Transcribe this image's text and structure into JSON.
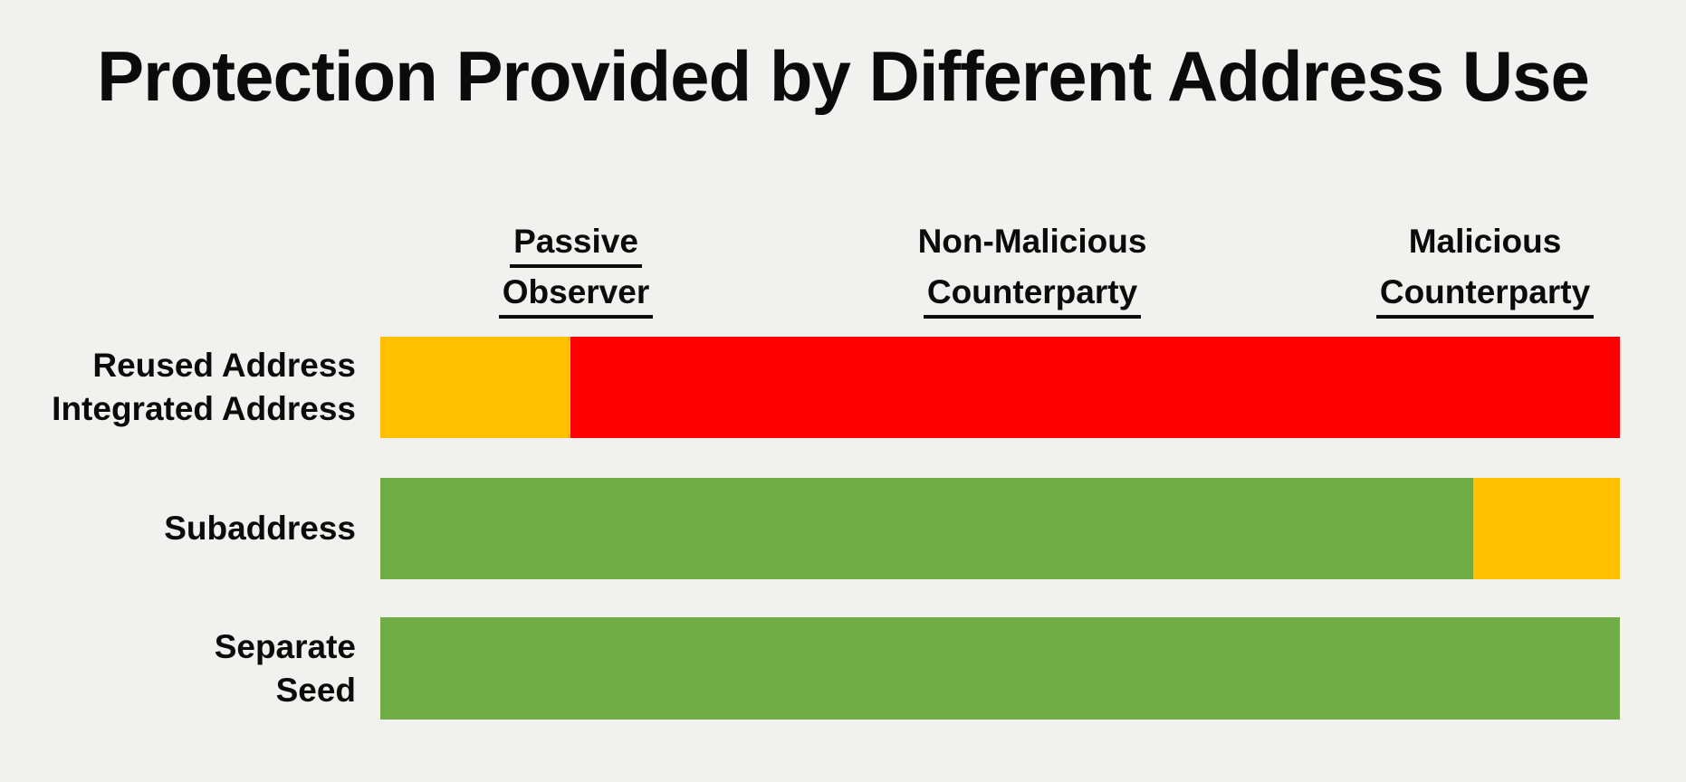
{
  "background_color": "#F1F1F0",
  "text_color": "#0b0b0b",
  "chart_data": {
    "type": "bar",
    "subtype": "horizontal-stacked-qualitative",
    "title": "Protection Provided by Different Address Use",
    "xlabel": "",
    "ylabel": "",
    "legend": "none",
    "grid": "off",
    "columns": [
      {
        "label_lines": [
          "Passive",
          "Observer"
        ],
        "underlined_lines": [
          0,
          1
        ]
      },
      {
        "label_lines": [
          "Non-Malicious",
          "Counterparty"
        ],
        "underlined_lines": [
          1
        ]
      },
      {
        "label_lines": [
          "Malicious",
          "Counterparty"
        ],
        "underlined_lines": [
          1
        ]
      }
    ],
    "column_centers_frac_of_bar": [
      0.158,
      0.526,
      0.891
    ],
    "status_colors": {
      "good": "#70AD47",
      "partial": "#FFC000",
      "bad": "#FF0000"
    },
    "rows": [
      {
        "label_lines": [
          "Reused Address",
          "Integrated Address"
        ],
        "segments": [
          {
            "level": "partial",
            "color": "#FFC000",
            "width_frac": 0.153,
            "width_pct": "15.34%"
          },
          {
            "level": "bad",
            "color": "#FF0000",
            "width_frac": 0.847,
            "width_pct": "84.66%"
          }
        ]
      },
      {
        "label_lines": [
          "Subaddress"
        ],
        "segments": [
          {
            "level": "good",
            "color": "#70AD47",
            "width_frac": 0.882,
            "width_pct": "88.17%"
          },
          {
            "level": "partial",
            "color": "#FFC000",
            "width_frac": 0.118,
            "width_pct": "11.83%"
          }
        ]
      },
      {
        "label_lines": [
          "Separate",
          "Seed"
        ],
        "segments": [
          {
            "level": "good",
            "color": "#70AD47",
            "width_frac": 1.0,
            "width_pct": "100%"
          }
        ]
      }
    ]
  }
}
